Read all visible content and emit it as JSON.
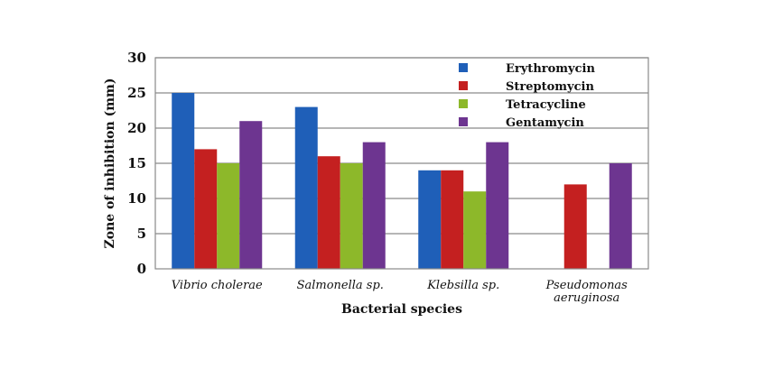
{
  "chart_data": {
    "type": "bar",
    "categories": [
      [
        "Vibrio cholerae"
      ],
      [
        "Salmonella sp."
      ],
      [
        "Klebsilla sp."
      ],
      [
        "Pseudomonas",
        "aeruginosa"
      ]
    ],
    "series": [
      {
        "name": "Erythromycin",
        "color": "#1f5fb8",
        "values": [
          25,
          23,
          14,
          0
        ]
      },
      {
        "name": "Streptomycin",
        "color": "#c42020",
        "values": [
          17,
          16,
          14,
          12
        ]
      },
      {
        "name": "Tetracycline",
        "color": "#8db82a",
        "values": [
          15,
          15,
          11,
          0
        ]
      },
      {
        "name": "Gentamycin",
        "color": "#6d3590",
        "values": [
          21,
          18,
          18,
          15
        ]
      }
    ],
    "xlabel": "Bacterial species",
    "ylabel": "Zone of inhibition (mm)",
    "ylim": [
      0,
      30
    ],
    "yticks": [
      0,
      5,
      10,
      15,
      20,
      25,
      30
    ],
    "grid": true,
    "legend_position": "top-right"
  }
}
